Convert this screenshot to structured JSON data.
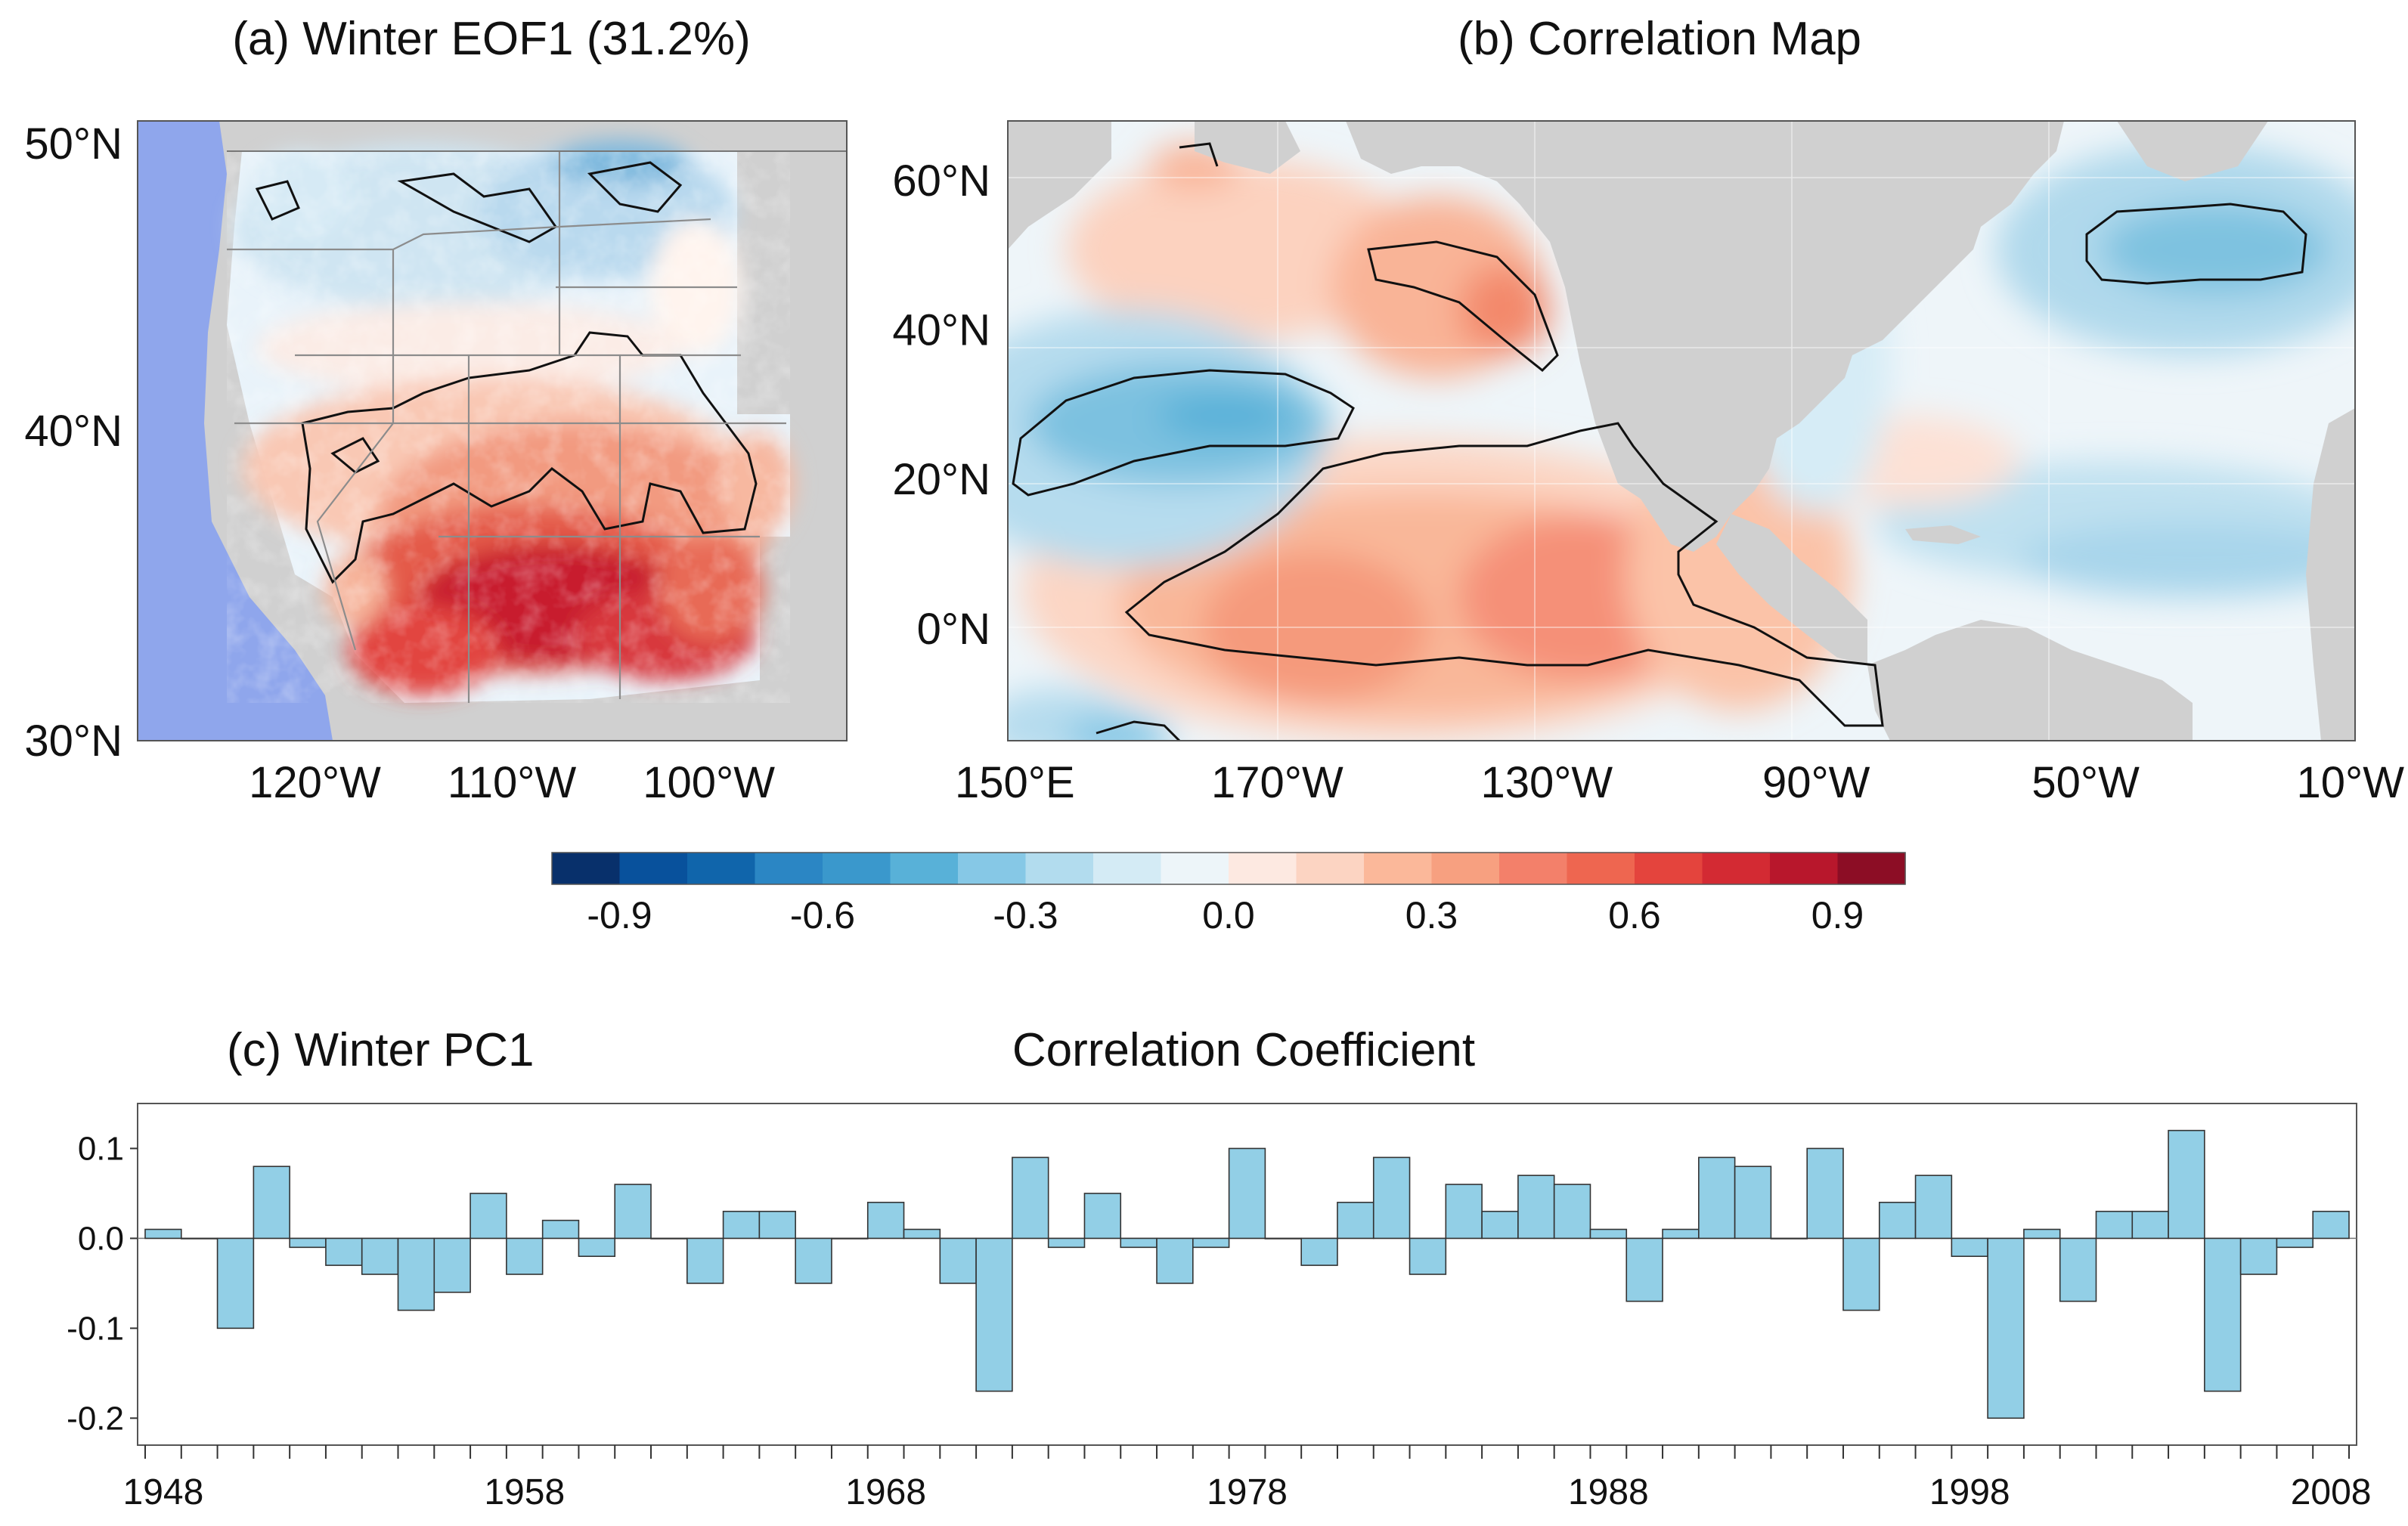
{
  "panel_a": {
    "title": "(a) Winter EOF1  (31.2%)",
    "lat_labels": [
      "50°N",
      "40°N",
      "30°N"
    ],
    "lon_labels": [
      "120°W",
      "110°W",
      "100°W"
    ],
    "lat_values": [
      50,
      40,
      30
    ],
    "lon_values": [
      -120,
      -110,
      -100
    ],
    "lat_range": [
      30,
      50
    ],
    "lon_range": [
      -129,
      -93
    ]
  },
  "panel_b": {
    "title": "(b) Correlation Map",
    "lat_labels": [
      "60°N",
      "40°N",
      "20°N",
      "0°N"
    ],
    "lon_labels": [
      "150°E",
      "170°W",
      "130°W",
      "90°W",
      "50°W",
      "10°W"
    ],
    "lat_values": [
      60,
      40,
      20,
      0
    ],
    "lon_values": [
      150,
      190,
      230,
      270,
      310,
      350
    ],
    "lat_range": [
      -15,
      68
    ],
    "lon_range": [
      150,
      350
    ]
  },
  "colorbar": {
    "tick_labels": [
      "-0.9",
      "-0.6",
      "-0.3",
      "0.0",
      "0.3",
      "0.6",
      "0.9"
    ],
    "colors": [
      "#08306b",
      "#08519c",
      "#1065ab",
      "#2b86c4",
      "#3a98cc",
      "#58b1d8",
      "#86c8e6",
      "#b2dcee",
      "#d4ebf5",
      "#edf5f9",
      "#fde9e1",
      "#fcd4c2",
      "#fbb89a",
      "#f7a080",
      "#f3806a",
      "#ee6650",
      "#e4443d",
      "#d32a33",
      "#b8172c",
      "#8c0d25"
    ],
    "range": [
      -1.0,
      1.0
    ]
  },
  "chart_data": {
    "type": "bar",
    "title": "(c) Winter PC1",
    "subtitle": "Correlation Coefficient",
    "xlabel": "",
    "ylabel": "",
    "ylim": [
      -0.23,
      0.15
    ],
    "yticks": [
      0.1,
      0.0,
      -0.1,
      -0.2
    ],
    "ytick_labels": [
      "0.1",
      "0.0",
      "-0.1",
      "-0.2"
    ],
    "xtick_labels": [
      "1948",
      "1958",
      "1968",
      "1978",
      "1988",
      "1998",
      "2008"
    ],
    "xtick_values": [
      1948,
      1958,
      1968,
      1978,
      1988,
      1998,
      2008
    ],
    "bar_color": "#92cfe6",
    "x": [
      1948,
      1949,
      1950,
      1951,
      1952,
      1953,
      1954,
      1955,
      1956,
      1957,
      1958,
      1959,
      1960,
      1961,
      1962,
      1963,
      1964,
      1965,
      1966,
      1967,
      1968,
      1969,
      1970,
      1971,
      1972,
      1973,
      1974,
      1975,
      1976,
      1977,
      1978,
      1979,
      1980,
      1981,
      1982,
      1983,
      1984,
      1985,
      1986,
      1987,
      1988,
      1989,
      1990,
      1991,
      1992,
      1993,
      1994,
      1995,
      1996,
      1997,
      1998,
      1999,
      2000,
      2001,
      2002,
      2003,
      2004,
      2005,
      2006,
      2007,
      2008
    ],
    "values": [
      0.01,
      0.0,
      -0.1,
      0.08,
      -0.01,
      -0.03,
      -0.04,
      -0.08,
      -0.06,
      0.05,
      -0.04,
      0.02,
      -0.02,
      0.06,
      0.0,
      -0.05,
      0.03,
      0.03,
      -0.05,
      0.0,
      0.04,
      0.01,
      -0.05,
      -0.17,
      0.09,
      -0.01,
      0.05,
      -0.01,
      -0.05,
      -0.01,
      0.1,
      0.0,
      -0.03,
      0.04,
      0.09,
      -0.04,
      0.06,
      0.03,
      0.07,
      0.06,
      0.01,
      -0.07,
      0.01,
      0.09,
      0.08,
      0.0,
      0.1,
      -0.08,
      0.04,
      0.07,
      -0.02,
      -0.2,
      0.01,
      -0.07,
      0.03,
      0.03,
      0.12,
      -0.17,
      -0.04,
      -0.01,
      0.03
    ]
  }
}
